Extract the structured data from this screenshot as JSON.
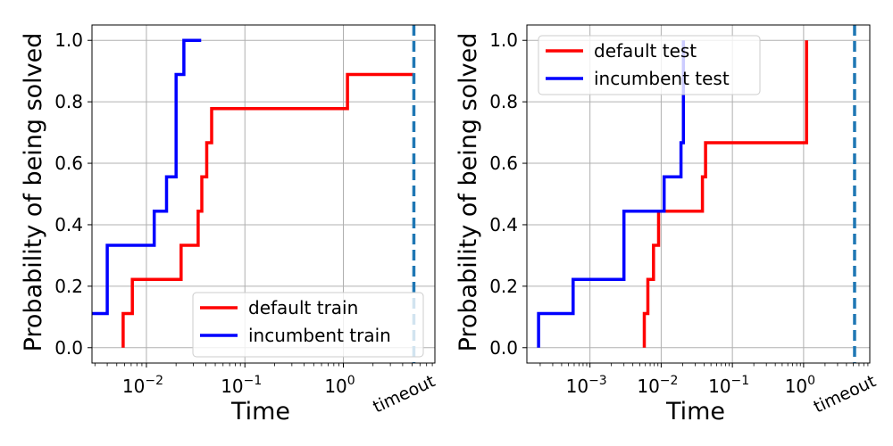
{
  "figure": {
    "colors": {
      "default": "#ff0000",
      "incumbent": "#0000ff",
      "timeout": "#1f77b4",
      "grid": "#b0b0b0"
    }
  },
  "chart_data": [
    {
      "type": "line",
      "step": "post",
      "xscale": "log",
      "xlabel": "Time",
      "ylabel": "Probability of being solved",
      "xlim": [
        0.0028,
        8.5
      ],
      "ylim": [
        -0.05,
        1.05
      ],
      "xticks": [
        {
          "value": 0.01,
          "base": "10",
          "exp": "−2"
        },
        {
          "value": 0.1,
          "base": "10",
          "exp": "−1"
        },
        {
          "value": 1,
          "base": "10",
          "exp": "0"
        }
      ],
      "yticks": [
        "0.0",
        "0.2",
        "0.4",
        "0.6",
        "0.8",
        "1.0"
      ],
      "grid": true,
      "legend_position": "bottom-right",
      "timeout": {
        "x": 5.2,
        "label": "timeout"
      },
      "series": [
        {
          "name": "default train",
          "color_key": "default",
          "x": [
            0.0058,
            0.0058,
            0.0072,
            0.0225,
            0.0335,
            0.0365,
            0.041,
            0.046,
            1.1,
            5.2
          ],
          "y": [
            0.0,
            0.111,
            0.222,
            0.333,
            0.444,
            0.556,
            0.667,
            0.778,
            0.889,
            0.889
          ]
        },
        {
          "name": "incumbent train",
          "color_key": "incumbent",
          "x": [
            0.0028,
            0.004,
            0.012,
            0.016,
            0.02,
            0.024,
            0.036
          ],
          "y": [
            0.111,
            0.333,
            0.444,
            0.556,
            0.889,
            1.0,
            1.0
          ]
        }
      ]
    },
    {
      "type": "line",
      "step": "post",
      "xscale": "log",
      "xlabel": "Time",
      "ylabel": "Probability of being solved",
      "xlim": [
        0.00013,
        8.5
      ],
      "ylim": [
        -0.05,
        1.05
      ],
      "xticks": [
        {
          "value": 0.001,
          "base": "10",
          "exp": "−3"
        },
        {
          "value": 0.01,
          "base": "10",
          "exp": "−2"
        },
        {
          "value": 0.1,
          "base": "10",
          "exp": "−1"
        },
        {
          "value": 1,
          "base": "10",
          "exp": "0"
        }
      ],
      "yticks": [
        "0.0",
        "0.2",
        "0.4",
        "0.6",
        "0.8",
        "1.0"
      ],
      "grid": true,
      "legend_position": "top-left",
      "timeout": {
        "x": 5.2,
        "label": "timeout"
      },
      "series": [
        {
          "name": "default test",
          "color_key": "default",
          "x": [
            0.0058,
            0.0058,
            0.0065,
            0.0078,
            0.0092,
            0.038,
            0.042,
            1.1,
            1.1
          ],
          "y": [
            0.0,
            0.111,
            0.222,
            0.333,
            0.444,
            0.556,
            0.667,
            0.667,
            1.0
          ]
        },
        {
          "name": "incumbent test",
          "color_key": "incumbent",
          "x": [
            0.00019,
            0.00019,
            0.00058,
            0.003,
            0.011,
            0.019,
            0.0205,
            0.0205
          ],
          "y": [
            0.0,
            0.111,
            0.222,
            0.444,
            0.556,
            0.667,
            0.667,
            1.0
          ]
        }
      ]
    }
  ]
}
